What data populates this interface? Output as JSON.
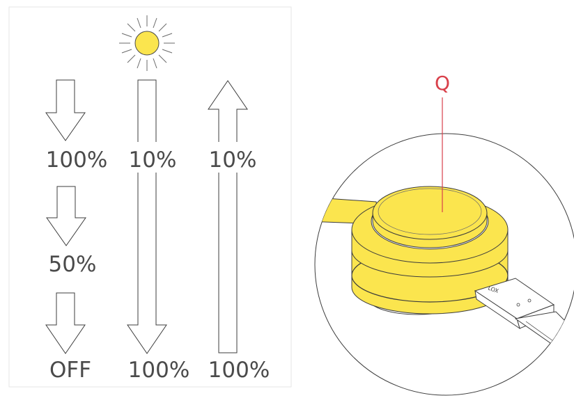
{
  "colors": {
    "accent_yellow": "#fbe54e",
    "callout_red": "#d9414b",
    "outline": "#3c3c3c",
    "text_gray": "#4a4a4a",
    "panel_border": "#e6e6e6"
  },
  "icons": {
    "sun": "sun-icon"
  },
  "left_panel": {
    "column_1": {
      "labels": [
        "100%",
        "50%",
        "OFF"
      ]
    },
    "column_2": {
      "top_label": "10%",
      "bottom_label": "100%"
    },
    "column_3": {
      "top_label": "10%",
      "bottom_label": "100%"
    }
  },
  "device_view": {
    "callout_label": "Q",
    "cable_marking": "LOX"
  }
}
